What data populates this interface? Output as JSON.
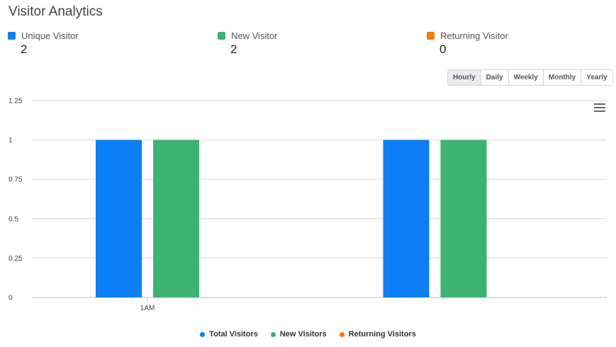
{
  "header": {
    "title": "Visitor Analytics"
  },
  "stats": [
    {
      "label": "Unique Visitor",
      "value": "2",
      "color": "#0d7ff5"
    },
    {
      "label": "New Visitor",
      "value": "2",
      "color": "#3cb371"
    },
    {
      "label": "Returning Visitor",
      "value": "0",
      "color": "#f07d0a"
    }
  ],
  "range_buttons": {
    "items": [
      "Hourly",
      "Daily",
      "Weekly",
      "Monthly",
      "Yearly"
    ],
    "active": "Hourly"
  },
  "chart_menu_icon": "hamburger-menu-icon",
  "chart_data": {
    "type": "bar",
    "categories": [
      "1AM",
      ""
    ],
    "series": [
      {
        "name": "Total Visitors",
        "values": [
          1,
          1
        ],
        "color": "#0d7ff5"
      },
      {
        "name": "New Visitors",
        "values": [
          1,
          1
        ],
        "color": "#3cb371"
      },
      {
        "name": "Returning Visitors",
        "values": [
          0,
          0
        ],
        "color": "#f07d0a"
      }
    ],
    "ylim": [
      0,
      1.25
    ],
    "yticks": [
      "0",
      "0.25",
      "0.5",
      "0.75",
      "1",
      "1.25"
    ],
    "grid": true,
    "legend_placement": "bottom-center"
  }
}
